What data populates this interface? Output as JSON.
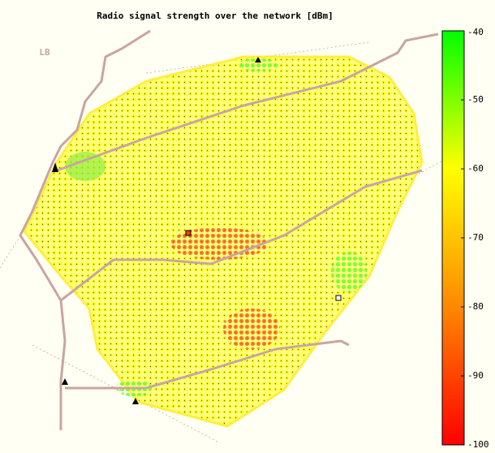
{
  "title": "Radio signal strength over the network [dBm]",
  "map_label": "LB",
  "colorbar": {
    "lim": [
      -100,
      -40
    ],
    "ticks": [
      -40,
      -50,
      -60,
      -70,
      -80,
      -90,
      -100
    ],
    "colors": [
      "#ff0000",
      "#ff8800",
      "#ffff00",
      "#00ff00"
    ]
  }
}
